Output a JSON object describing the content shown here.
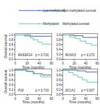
{
  "chart_data": [
    {
      "type": "line",
      "title": "RASSF1A",
      "annotation": "p = 0.716",
      "xlabel": "Time (months)",
      "ylabel": "Overall survival",
      "xlim": [
        0,
        60
      ],
      "xticks": [
        0,
        20,
        40,
        60
      ],
      "ylim": [
        0,
        1.05
      ],
      "yticks": [
        {
          "value": 0,
          "label": "0.0"
        },
        0.2,
        0.4,
        0.6,
        0.8,
        {
          "value": 1,
          "label": "1.0"
        }
      ],
      "legend": "top left",
      "series": [
        {
          "name": "Low-methylated",
          "color": "#2b4f9e",
          "x": [
            0,
            10,
            25,
            45,
            60
          ],
          "values": [
            1,
            1,
            0.95,
            0.95,
            0.95
          ]
        },
        {
          "name": "Methylated",
          "color": "#5fbf97",
          "x": [
            0,
            15,
            25,
            30,
            38,
            45,
            60
          ],
          "values": [
            1,
            0.95,
            0.88,
            0.8,
            0.7,
            0.62,
            0.62
          ]
        }
      ]
    },
    {
      "type": "line",
      "title": "RUNX3",
      "annotation": "p = 0.273",
      "xlabel": "Time (months)",
      "xlim": [
        0,
        60
      ],
      "xticks": [
        0,
        20,
        40,
        60
      ],
      "ylim": [
        0,
        1.05
      ],
      "yticks": [
        {
          "value": 0,
          "label": "0.0"
        },
        0.2,
        0.4,
        0.6,
        0.8,
        {
          "value": 1,
          "label": "1.0"
        }
      ],
      "legend": "top right",
      "series": [
        {
          "name": "Non-methylated survival",
          "color": "#2b4f9e",
          "x": [
            0,
            20,
            35,
            60
          ],
          "values": [
            1,
            0.97,
            0.9,
            0.9
          ]
        },
        {
          "name": "Methylated survival",
          "color": "#5fbf97",
          "x": [
            0,
            12,
            22,
            30,
            40,
            50,
            60
          ],
          "values": [
            1,
            0.92,
            0.85,
            0.75,
            0.65,
            0.58,
            0.58
          ]
        }
      ]
    },
    {
      "type": "line",
      "title": "P16",
      "annotation": "p = 0.719",
      "xlabel": "Time (months)",
      "ylabel": "Overall survival",
      "xlim": [
        0,
        60
      ],
      "xticks": [
        0,
        20,
        40,
        60
      ],
      "ylim": [
        0,
        1.05
      ],
      "yticks": [
        {
          "value": 0,
          "label": "0.0"
        },
        0.2,
        0.4,
        0.6,
        0.8,
        {
          "value": 1,
          "label": "1.0"
        }
      ],
      "series": [
        {
          "name": "Low-methylated",
          "color": "#2b4f9e",
          "x": [
            0,
            18,
            30,
            45,
            60
          ],
          "values": [
            1,
            0.95,
            0.85,
            0.8,
            0.8
          ]
        },
        {
          "name": "Methylated",
          "color": "#5fbf97",
          "x": [
            0,
            20,
            32,
            42,
            60
          ],
          "values": [
            1,
            0.93,
            0.85,
            0.72,
            0.72
          ]
        }
      ]
    },
    {
      "type": "line",
      "title": "DCLK1",
      "annotation": "p = 0.027",
      "xlabel": "Time (months)",
      "xlim": [
        0,
        60
      ],
      "xticks": [
        0,
        20,
        40,
        60
      ],
      "ylim": [
        0,
        1.05
      ],
      "yticks": [
        {
          "value": 0,
          "label": "0.0"
        },
        0.2,
        0.4,
        0.6,
        0.8,
        {
          "value": 1,
          "label": "1.0"
        }
      ],
      "series": [
        {
          "name": "Non-methylated survival",
          "color": "#2b4f9e",
          "x": [
            0,
            25,
            40,
            60
          ],
          "values": [
            1,
            0.97,
            0.92,
            0.92
          ]
        },
        {
          "name": "Methylated survival",
          "color": "#5fbf97",
          "x": [
            0,
            10,
            18,
            26,
            34,
            42,
            60
          ],
          "values": [
            1,
            0.9,
            0.8,
            0.7,
            0.6,
            0.5,
            0.5
          ]
        }
      ]
    }
  ]
}
